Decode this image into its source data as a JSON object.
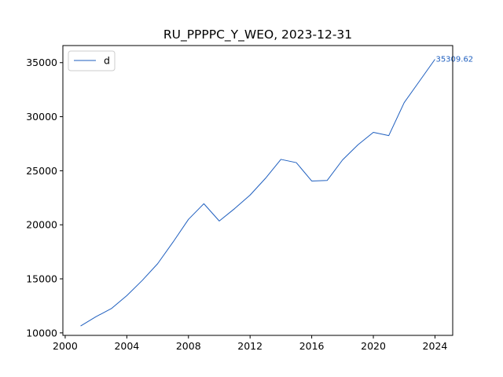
{
  "chart_data": {
    "type": "line",
    "title": "RU_PPPPC_Y_WEO, 2023-12-31",
    "xlabel": "",
    "ylabel": "",
    "xlim": [
      1999.85,
      2025.15
    ],
    "ylim": [
      9770,
      36580
    ],
    "x_ticks": [
      2000,
      2004,
      2008,
      2012,
      2016,
      2020,
      2024
    ],
    "x_tick_labels": [
      "2000",
      "2004",
      "2008",
      "2012",
      "2016",
      "2020",
      "2024"
    ],
    "y_ticks": [
      10000,
      15000,
      20000,
      25000,
      30000,
      35000
    ],
    "y_tick_labels": [
      "10000",
      "15000",
      "20000",
      "25000",
      "30000",
      "35000"
    ],
    "grid": false,
    "legend_position": "upper left",
    "line_color": "#1f5fbf",
    "series": [
      {
        "name": "d",
        "x": [
          2001,
          2002,
          2003,
          2004,
          2005,
          2006,
          2007,
          2008,
          2009,
          2010,
          2011,
          2012,
          2013,
          2014,
          2015,
          2016,
          2017,
          2018,
          2019,
          2020,
          2021,
          2022,
          2023,
          2024
        ],
        "values": [
          10640,
          11500,
          12250,
          13450,
          14850,
          16400,
          18400,
          20500,
          21950,
          20350,
          21500,
          22750,
          24300,
          26050,
          25750,
          24050,
          24100,
          26000,
          27400,
          28550,
          28250,
          31300,
          33300,
          35309.62
        ]
      }
    ],
    "annotations": [
      {
        "text": "35309.62",
        "x": 2024,
        "y": 35309.62
      }
    ]
  }
}
